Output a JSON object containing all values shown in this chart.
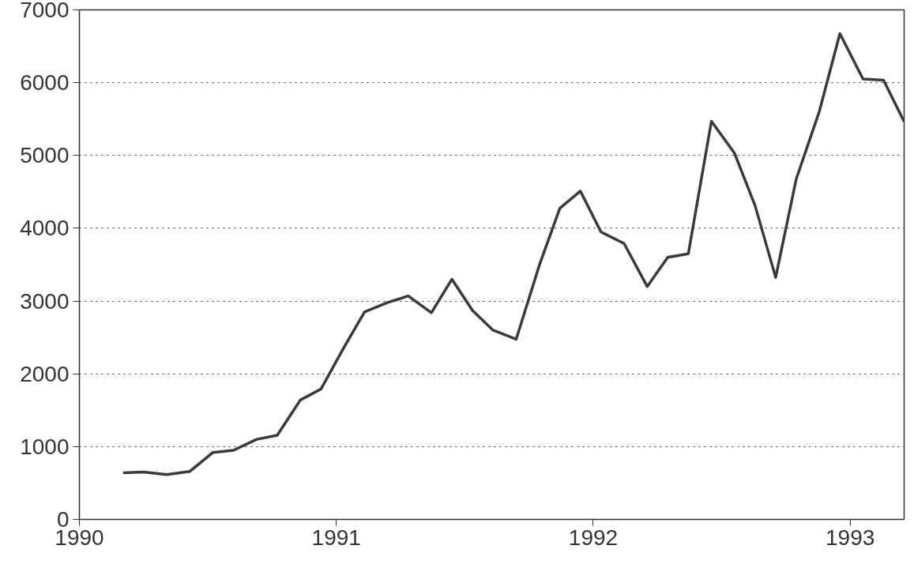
{
  "chart_data": {
    "type": "line",
    "x": [
      1990.17,
      1990.25,
      1990.34,
      1990.43,
      1990.52,
      1990.6,
      1990.69,
      1990.77,
      1990.86,
      1990.94,
      1991.03,
      1991.11,
      1991.2,
      1991.28,
      1991.37,
      1991.45,
      1991.53,
      1991.61,
      1991.7,
      1991.79,
      1991.87,
      1991.95,
      1992.03,
      1992.12,
      1992.21,
      1992.29,
      1992.37,
      1992.46,
      1992.55,
      1992.63,
      1992.71,
      1992.79,
      1992.88,
      1992.96,
      1993.05,
      1993.13,
      1993.21
    ],
    "series": [
      {
        "color": "#3a3a3a",
        "values": [
          640,
          650,
          615,
          660,
          920,
          950,
          1100,
          1155,
          1640,
          1790,
          2365,
          2850,
          2980,
          3070,
          2840,
          3300,
          2870,
          2600,
          2475,
          3490,
          4275,
          4510,
          3950,
          3790,
          3200,
          3600,
          3650,
          5470,
          5030,
          4310,
          3325,
          4675,
          5605,
          6675,
          6050,
          6035,
          5465
        ]
      }
    ],
    "xlim": [
      1990,
      1993.21
    ],
    "xticks": [
      1990,
      1991,
      1992,
      1993
    ],
    "ylim": [
      0,
      7000
    ],
    "yticks": [
      0,
      1000,
      2000,
      3000,
      4000,
      5000,
      6000,
      7000
    ],
    "grid": "y",
    "line_style": "solid"
  }
}
